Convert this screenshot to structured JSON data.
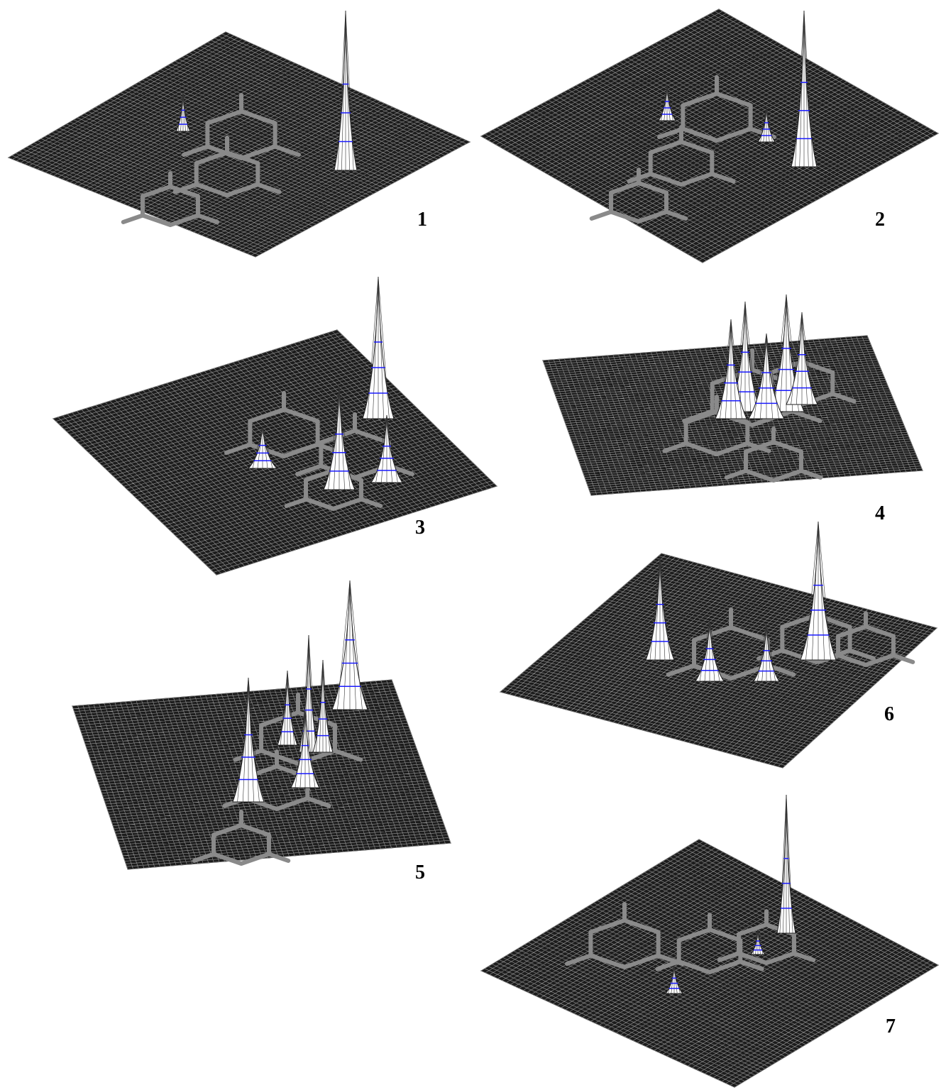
{
  "panels": [
    {
      "label": "1"
    },
    {
      "label": "2"
    },
    {
      "label": "3"
    },
    {
      "label": "4"
    },
    {
      "label": "5"
    },
    {
      "label": "6"
    },
    {
      "label": "7"
    }
  ]
}
